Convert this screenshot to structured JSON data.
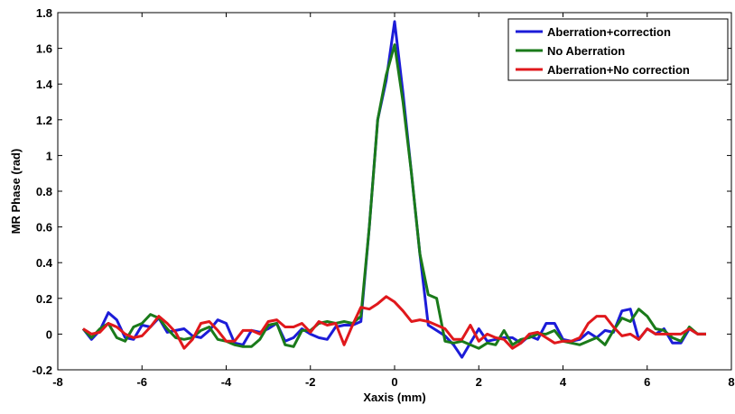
{
  "chart_data": {
    "type": "line",
    "xlabel": "Xaxis (mm)",
    "ylabel": "MR Phase (rad)",
    "xlim": [
      -8,
      8
    ],
    "ylim": [
      -0.2,
      1.8
    ],
    "xticks": [
      -8,
      -6,
      -4,
      -2,
      0,
      2,
      4,
      6,
      8
    ],
    "yticks": [
      -0.2,
      0,
      0.2,
      0.4,
      0.6,
      0.8,
      1,
      1.2,
      1.4,
      1.6,
      1.8
    ],
    "xtick_labels": [
      "-8",
      "-6",
      "-4",
      "-2",
      "0",
      "2",
      "4",
      "6",
      "8"
    ],
    "ytick_labels": [
      "-0.2",
      "0",
      "0.2",
      "0.4",
      "0.6",
      "0.8",
      "1",
      "1.2",
      "1.4",
      "1.6",
      "1.8"
    ],
    "grid": false,
    "legend_position": "top-right",
    "x": [
      -7.4,
      -7.2,
      -7.0,
      -6.8,
      -6.6,
      -6.4,
      -6.2,
      -6.0,
      -5.8,
      -5.6,
      -5.4,
      -5.2,
      -5.0,
      -4.8,
      -4.6,
      -4.4,
      -4.2,
      -4.0,
      -3.8,
      -3.6,
      -3.4,
      -3.2,
      -3.0,
      -2.8,
      -2.6,
      -2.4,
      -2.2,
      -2.0,
      -1.8,
      -1.6,
      -1.4,
      -1.2,
      -1.0,
      -0.8,
      -0.6,
      -0.4,
      -0.2,
      0.0,
      0.2,
      0.4,
      0.6,
      0.8,
      1.0,
      1.2,
      1.4,
      1.6,
      1.8,
      2.0,
      2.2,
      2.4,
      2.6,
      2.8,
      3.0,
      3.2,
      3.4,
      3.6,
      3.8,
      4.0,
      4.2,
      4.4,
      4.6,
      4.8,
      5.0,
      5.2,
      5.4,
      5.6,
      5.8,
      6.0,
      6.2,
      6.4,
      6.6,
      6.8,
      7.0,
      7.2,
      7.4
    ],
    "series": [
      {
        "name": "Aberration+correction",
        "color": "#1c1cd8",
        "values": [
          0.03,
          -0.03,
          0.02,
          0.12,
          0.08,
          -0.02,
          -0.03,
          0.05,
          0.04,
          0.09,
          0.01,
          0.02,
          0.03,
          -0.01,
          -0.02,
          0.02,
          0.08,
          0.06,
          -0.05,
          -0.06,
          0.02,
          0.01,
          0.03,
          0.06,
          -0.04,
          -0.02,
          0.03,
          0.0,
          -0.02,
          -0.03,
          0.04,
          0.05,
          0.05,
          0.07,
          0.6,
          1.2,
          1.42,
          1.75,
          1.35,
          0.9,
          0.45,
          0.05,
          0.02,
          -0.01,
          -0.06,
          -0.13,
          -0.05,
          0.03,
          -0.04,
          -0.03,
          -0.02,
          -0.02,
          -0.05,
          -0.01,
          -0.03,
          0.06,
          0.06,
          -0.03,
          -0.04,
          -0.03,
          0.01,
          -0.02,
          0.02,
          0.01,
          0.13,
          0.14,
          -0.03,
          0.03,
          0.0,
          0.03,
          -0.05,
          -0.05,
          0.03,
          0.0,
          0.0
        ]
      },
      {
        "name": "No Aberration",
        "color": "#1a7a1a",
        "values": [
          0.03,
          -0.02,
          0.03,
          0.06,
          -0.02,
          -0.04,
          0.04,
          0.06,
          0.11,
          0.09,
          0.03,
          -0.02,
          -0.03,
          -0.02,
          0.02,
          0.04,
          -0.03,
          -0.04,
          -0.06,
          -0.07,
          -0.07,
          -0.03,
          0.05,
          0.06,
          -0.06,
          -0.07,
          0.02,
          0.02,
          0.06,
          0.07,
          0.06,
          0.07,
          0.06,
          0.1,
          0.6,
          1.2,
          1.45,
          1.62,
          1.3,
          0.9,
          0.45,
          0.22,
          0.2,
          -0.04,
          -0.05,
          -0.04,
          -0.06,
          -0.08,
          -0.05,
          -0.06,
          0.02,
          -0.06,
          -0.03,
          -0.02,
          0.0,
          0.0,
          0.02,
          -0.04,
          -0.05,
          -0.06,
          -0.04,
          -0.02,
          -0.06,
          0.02,
          0.09,
          0.07,
          0.14,
          0.1,
          0.03,
          0.02,
          -0.02,
          -0.04,
          0.04,
          0.0,
          0.0
        ]
      },
      {
        "name": "Aberration+No correction",
        "color": "#e0181c",
        "values": [
          0.03,
          0.0,
          0.01,
          0.06,
          0.04,
          0.0,
          -0.02,
          -0.01,
          0.04,
          0.1,
          0.06,
          0.01,
          -0.08,
          -0.03,
          0.06,
          0.07,
          0.02,
          -0.04,
          -0.04,
          0.02,
          0.02,
          0.0,
          0.07,
          0.08,
          0.04,
          0.04,
          0.06,
          0.01,
          0.07,
          0.05,
          0.06,
          -0.06,
          0.05,
          0.15,
          0.14,
          0.17,
          0.21,
          0.18,
          0.13,
          0.07,
          0.08,
          0.07,
          0.05,
          0.03,
          -0.03,
          -0.03,
          0.05,
          -0.04,
          0.0,
          -0.02,
          -0.03,
          -0.08,
          -0.05,
          0.0,
          0.01,
          -0.02,
          -0.05,
          -0.04,
          -0.04,
          -0.02,
          0.06,
          0.1,
          0.1,
          0.04,
          -0.01,
          0.0,
          -0.03,
          0.03,
          0.0,
          0.0,
          0.0,
          0.0,
          0.03,
          0.0,
          0.0
        ]
      }
    ]
  }
}
